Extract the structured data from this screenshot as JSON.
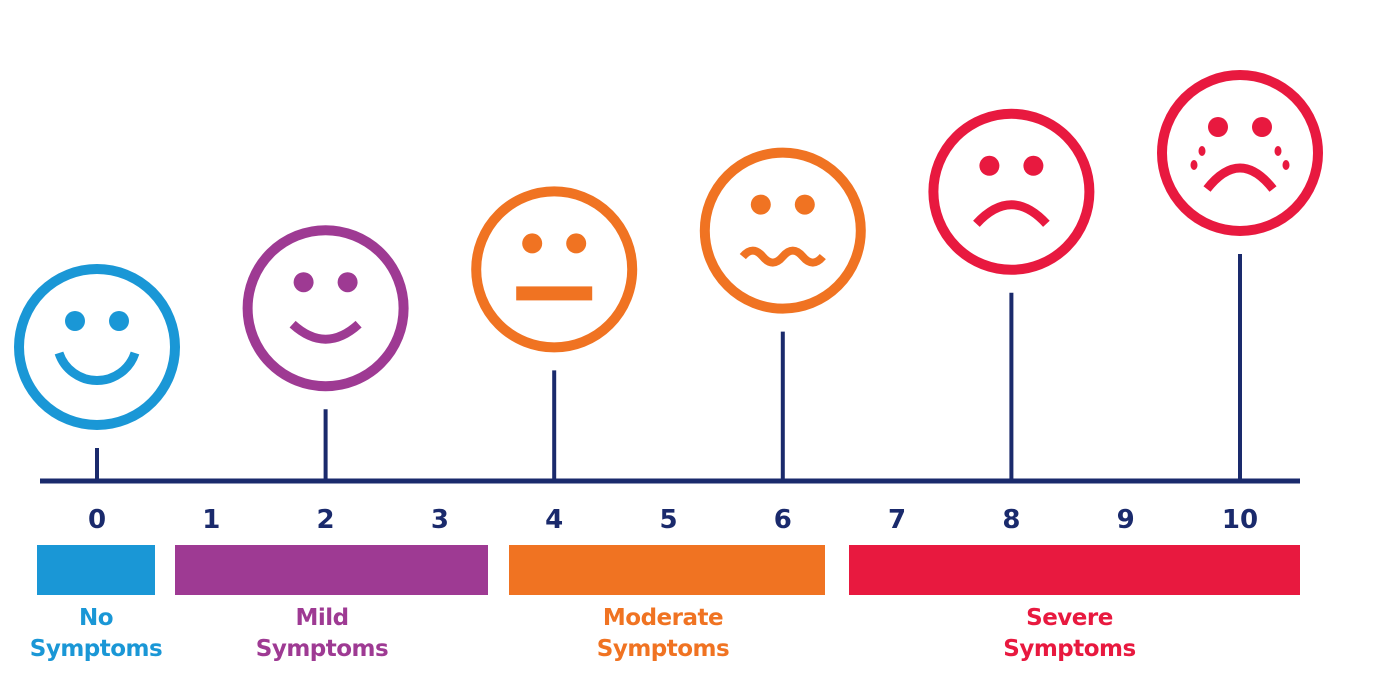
{
  "scale": {
    "numbers": [
      "0",
      "1",
      "2",
      "3",
      "4",
      "5",
      "6",
      "7",
      "8",
      "9",
      "10"
    ],
    "axis_color": "#1a2a6c"
  },
  "faces": [
    {
      "value": 0,
      "expression": "big-smile",
      "color": "#1a97d6"
    },
    {
      "value": 2,
      "expression": "smile",
      "color": "#9e3a93"
    },
    {
      "value": 4,
      "expression": "neutral",
      "color": "#f07322"
    },
    {
      "value": 6,
      "expression": "wavy-uneasy",
      "color": "#f07322"
    },
    {
      "value": 8,
      "expression": "frown",
      "color": "#e8193f"
    },
    {
      "value": 10,
      "expression": "crying",
      "color": "#e8193f"
    }
  ],
  "categories": [
    {
      "range": [
        0,
        0
      ],
      "line1": "No",
      "line2": "Symptoms",
      "color": "#1a97d6"
    },
    {
      "range": [
        1,
        3
      ],
      "line1": "Mild",
      "line2": "Symptoms",
      "color": "#9e3a93"
    },
    {
      "range": [
        4,
        6
      ],
      "line1": "Moderate",
      "line2": "Symptoms",
      "color": "#f07322"
    },
    {
      "range": [
        7,
        10
      ],
      "line1": "Severe",
      "line2": "Symptoms",
      "color": "#e8193f"
    }
  ]
}
